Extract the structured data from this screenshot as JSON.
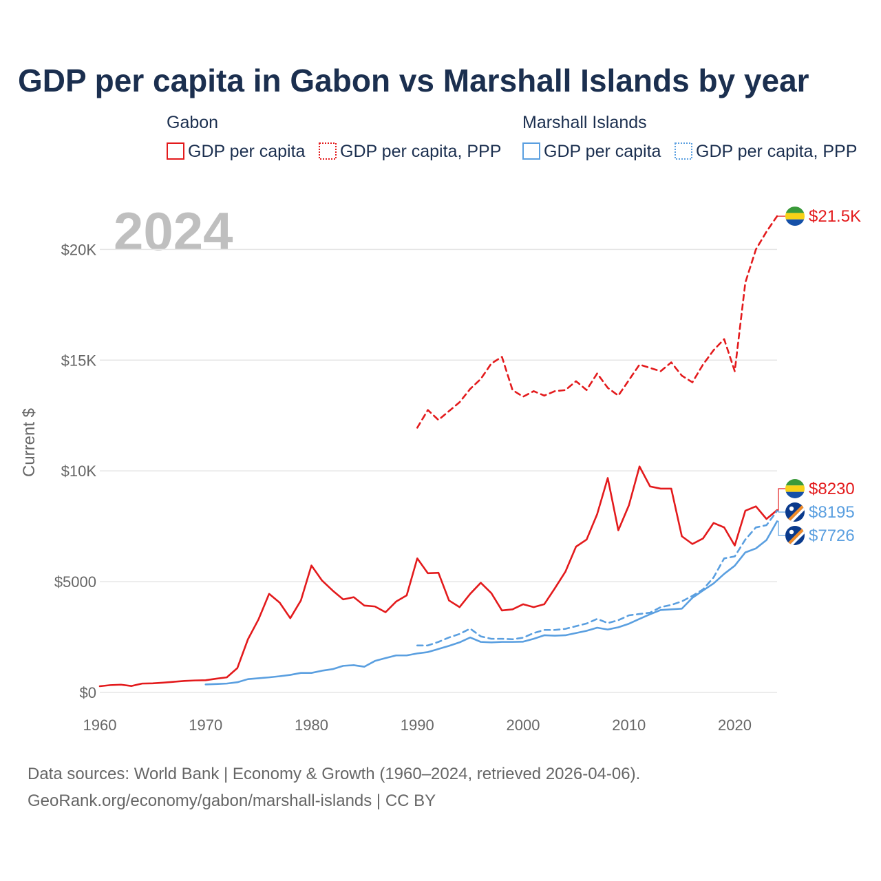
{
  "title": "GDP per capita in Gabon vs Marshall Islands by year",
  "year_badge": "2024",
  "legend": {
    "groups": [
      {
        "name": "Gabon",
        "items": [
          "GDP per capita",
          "GDP per capita, PPP"
        ],
        "color": "#e31a1c"
      },
      {
        "name": "Marshall Islands",
        "items": [
          "GDP per capita",
          "GDP per capita, PPP"
        ],
        "color": "#5a9fe0"
      }
    ]
  },
  "source": {
    "line1": "Data sources: World Bank | Economy & Growth (1960–2024, retrieved 2026-04-06).",
    "line2": "GeoRank.org/economy/gabon/marshall-islands | CC BY"
  },
  "chart_data": {
    "type": "line",
    "title": "GDP per capita in Gabon vs Marshall Islands by year",
    "xlabel": "",
    "ylabel": "Current $",
    "xlim": [
      1960,
      2024
    ],
    "ylim": [
      0,
      22000
    ],
    "x_ticks": [
      1960,
      1970,
      1980,
      1990,
      2000,
      2010,
      2020
    ],
    "x_tick_labels": [
      "1960",
      "1970",
      "1980",
      "1990",
      "2000",
      "2010",
      "2020"
    ],
    "y_ticks": [
      0,
      5000,
      10000,
      15000,
      20000
    ],
    "y_tick_labels": [
      "$0",
      "$5000",
      "$10K",
      "$15K",
      "$20K"
    ],
    "grid": true,
    "series": [
      {
        "name": "Gabon GDP per capita",
        "color": "#e31a1c",
        "dash": "solid",
        "end_label": "$8230",
        "start_year": 1960,
        "values": [
          280,
          330,
          350,
          290,
          400,
          410,
          440,
          480,
          520,
          540,
          550,
          620,
          680,
          1100,
          2400,
          3300,
          4450,
          4050,
          3350,
          4150,
          5730,
          5050,
          4600,
          4200,
          4300,
          3920,
          3880,
          3620,
          4100,
          4380,
          6050,
          5380,
          5400,
          4150,
          3850,
          4450,
          4950,
          4480,
          3700,
          3750,
          3980,
          3850,
          3980,
          4700,
          5450,
          6580,
          6900,
          8050,
          9680,
          7320,
          8450,
          10200,
          9300,
          9200,
          9200,
          7050,
          6700,
          6950,
          7650,
          7450,
          6630,
          8200,
          8400,
          7830,
          8230
        ]
      },
      {
        "name": "Gabon GDP per capita, PPP",
        "color": "#e31a1c",
        "dash": "dashed",
        "end_label": "$21.5K",
        "start_year": 1990,
        "values": [
          11950,
          12750,
          12300,
          12700,
          13100,
          13700,
          14150,
          14850,
          15150,
          13650,
          13350,
          13600,
          13400,
          13600,
          13650,
          14050,
          13650,
          14400,
          13750,
          13400,
          14100,
          14800,
          14650,
          14500,
          14900,
          14300,
          14000,
          14800,
          15450,
          15950,
          14500,
          18500,
          20000,
          20800,
          21500
        ]
      },
      {
        "name": "Marshall Islands GDP per capita",
        "color": "#5a9fe0",
        "dash": "solid",
        "end_label": "$7726",
        "start_year": 1970,
        "values": [
          360,
          380,
          400,
          460,
          600,
          640,
          680,
          730,
          790,
          880,
          880,
          980,
          1050,
          1200,
          1230,
          1160,
          1420,
          1550,
          1670,
          1670,
          1760,
          1820,
          1960,
          2100,
          2260,
          2480,
          2280,
          2260,
          2280,
          2280,
          2290,
          2420,
          2580,
          2560,
          2580,
          2680,
          2780,
          2920,
          2840,
          2940,
          3100,
          3320,
          3530,
          3720,
          3750,
          3780,
          4270,
          4600,
          4920,
          5350,
          5720,
          6320,
          6500,
          6880,
          7726
        ]
      },
      {
        "name": "Marshall Islands GDP per capita, PPP",
        "color": "#5a9fe0",
        "dash": "dashed",
        "end_label": "$8195",
        "start_year": 1990,
        "values": [
          2120,
          2120,
          2280,
          2480,
          2640,
          2880,
          2530,
          2420,
          2420,
          2400,
          2470,
          2680,
          2820,
          2820,
          2870,
          2990,
          3110,
          3320,
          3130,
          3260,
          3480,
          3540,
          3600,
          3850,
          3950,
          4110,
          4360,
          4650,
          5190,
          6050,
          6140,
          6900,
          7450,
          7550,
          8195
        ]
      }
    ]
  }
}
